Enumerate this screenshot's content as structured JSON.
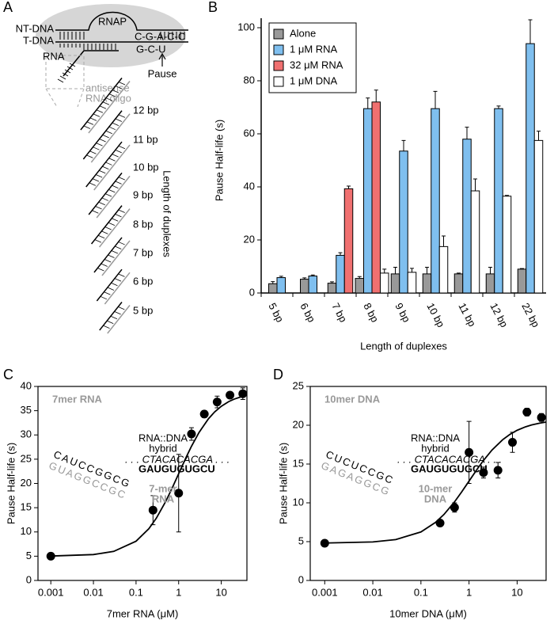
{
  "panel_labels": [
    "A",
    "B",
    "C",
    "D"
  ],
  "diagram": {
    "nt_dna": "NT-DNA",
    "t_dna": "T-DNA",
    "rnap": "RNAP",
    "nt_seq": "C-G-A-C-C",
    "t_seq": "G-C-U",
    "rna": "RNA",
    "pause": "Pause",
    "antisense": [
      "antisense",
      "RNA oligo"
    ],
    "duplexes": [
      "12 bp",
      "11 bp",
      "10 bp",
      "9 bp",
      "8 bp",
      "7 bp",
      "6 bp",
      "5 bp"
    ],
    "axis_label": "Length of duplexes"
  },
  "chart_data": [
    {
      "type": "bar",
      "ylabel": "Pause Half-life (s)",
      "xlabel": "Length of duplexes",
      "categories": [
        "5 bp",
        "6 bp",
        "7 bp",
        "8 bp",
        "9 bp",
        "10 bp",
        "11 bp",
        "12 bp",
        "22 bp"
      ],
      "series": [
        {
          "name": "Alone",
          "color": "#999999",
          "values": [
            3.5,
            5.2,
            3.7,
            5.5,
            7.2,
            7.2,
            7.2,
            7.2,
            9.0
          ],
          "errors": [
            0.8,
            0.5,
            0.5,
            0.7,
            2.5,
            2.5,
            0.3,
            2.5,
            0.2
          ]
        },
        {
          "name": "1 μM RNA",
          "color": "#7fbfef",
          "values": [
            5.8,
            6.4,
            14.2,
            69.5,
            53.5,
            69.5,
            58,
            69.5,
            94
          ],
          "errors": [
            0.5,
            0.4,
            1.0,
            4,
            4,
            6.5,
            4.5,
            1,
            9
          ]
        },
        {
          "name": "32 μM RNA",
          "color": "#f07070",
          "values": [
            null,
            null,
            39.3,
            72,
            null,
            null,
            null,
            null,
            null
          ],
          "errors": [
            null,
            null,
            1,
            4.5,
            null,
            null,
            null,
            null,
            null
          ]
        },
        {
          "name": "1 μM DNA",
          "color": "#ffffff",
          "values": [
            null,
            null,
            null,
            7.5,
            7.8,
            17.5,
            38.5,
            36.5,
            57.5
          ],
          "errors": [
            null,
            null,
            null,
            1.5,
            1.5,
            4,
            4.5,
            0.3,
            3.5
          ]
        }
      ],
      "ylim": [
        0,
        100
      ],
      "yticks": [
        0,
        20,
        40,
        60,
        80,
        100
      ],
      "legend": "upper-left"
    },
    {
      "type": "scatter",
      "title": "7mer RNA",
      "xlabel": "7mer RNA (μM)",
      "ylabel": "Pause Half-life (s)",
      "color": "#000000",
      "x": [
        0.001,
        0.25,
        1,
        2,
        4,
        8,
        16,
        32
      ],
      "values": [
        5,
        14.5,
        18,
        30.2,
        34.3,
        36.8,
        38.2,
        38.5
      ],
      "errors": [
        null,
        3,
        8,
        1.3,
        0.7,
        1.2,
        0.5,
        1.2
      ],
      "fit": {
        "x": [
          0.001,
          0.01,
          0.03,
          0.1,
          0.2,
          0.3,
          0.5,
          0.7,
          1,
          1.5,
          2,
          3,
          5,
          7,
          10,
          15,
          20,
          30,
          40
        ],
        "values": [
          5.03,
          5.34,
          5.99,
          8.09,
          10.67,
          12.85,
          16.33,
          19.0,
          22.0,
          25.4,
          27.67,
          30.5,
          33.33,
          34.75,
          35.91,
          36.88,
          37.38,
          37.9,
          38.17
        ]
      },
      "xscale": "log",
      "xlim": [
        0.0005,
        40
      ],
      "xticks": [
        0.001,
        0.01,
        0.1,
        1,
        10
      ],
      "ylim": [
        0,
        40
      ],
      "yticks": [
        0,
        5,
        10,
        15,
        20,
        25,
        30,
        35,
        40
      ],
      "annotations": [
        "RNA::DNA",
        "hybrid",
        ". . . CTACACACGA . . .",
        "GAUGUGUGCU",
        "7-mer",
        "RNA",
        "CAUCCGGCG",
        "GUAGGCCGC"
      ]
    },
    {
      "type": "scatter",
      "title": "10mer DNA",
      "xlabel": "10mer DNA (μM)",
      "ylabel": "Pause Half-life (s)",
      "color": "#000000",
      "x": [
        0.001,
        0.25,
        0.5,
        1,
        2,
        4,
        8,
        16,
        32
      ],
      "values": [
        4.8,
        7.4,
        9.4,
        16.5,
        13.9,
        14.2,
        17.8,
        21.7,
        21.0
      ],
      "errors": [
        null,
        0.4,
        0.6,
        4,
        0.7,
        1,
        1.3,
        0.5,
        0.5
      ],
      "fit": {
        "x": [
          0.001,
          0.01,
          0.03,
          0.1,
          0.2,
          0.3,
          0.5,
          0.7,
          1,
          1.5,
          2,
          3,
          5,
          7,
          10,
          15,
          20,
          30,
          40
        ],
        "values": [
          4.82,
          4.96,
          5.27,
          6.25,
          7.47,
          8.49,
          10.13,
          11.39,
          12.8,
          14.4,
          15.47,
          16.8,
          18.13,
          18.8,
          19.35,
          19.8,
          20.04,
          20.28,
          20.41
        ]
      },
      "xscale": "log",
      "xlim": [
        0.0005,
        40
      ],
      "xticks": [
        0.001,
        0.01,
        0.1,
        1,
        10
      ],
      "ylim": [
        0,
        25
      ],
      "yticks": [
        0,
        5,
        10,
        15,
        20,
        25
      ],
      "annotations": [
        "RNA::DNA",
        "hybrid",
        ". . . CTACACACGA . . .",
        "GAUGUGUGCU",
        "10-mer",
        "DNA",
        "CUCUCCGC",
        "GAGAGGCG"
      ]
    }
  ]
}
